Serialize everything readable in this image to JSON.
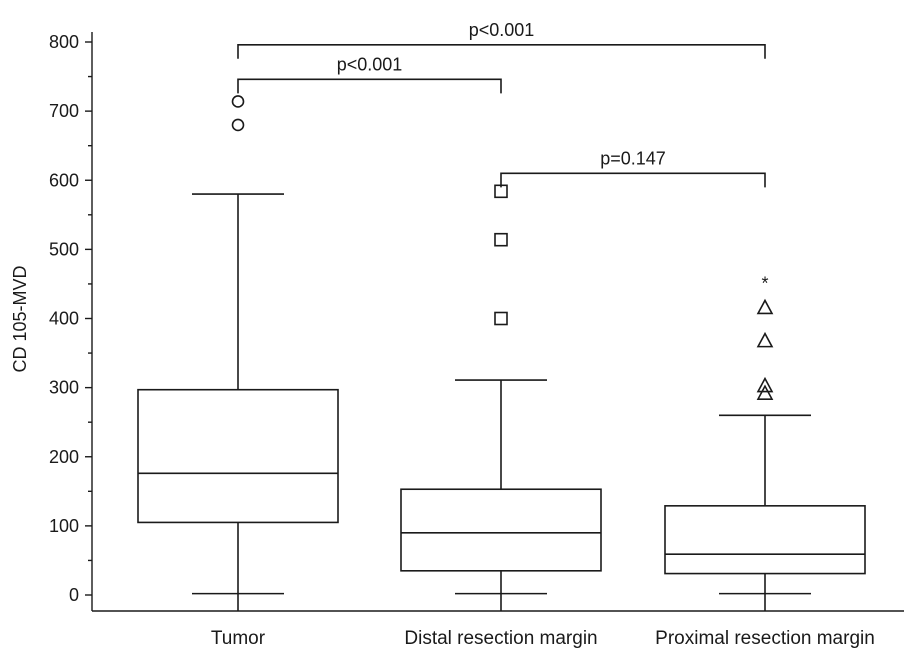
{
  "chart_data": {
    "type": "box",
    "title": "",
    "xlabel": "",
    "ylabel": "CD 105-MVD",
    "ylim": [
      0,
      800
    ],
    "y_ticks": [
      0,
      100,
      200,
      300,
      400,
      500,
      600,
      700,
      800
    ],
    "grid": false,
    "categories": [
      "Tumor",
      "Distal resection margin",
      "Proximal resection margin"
    ],
    "boxes": [
      {
        "category": "Tumor",
        "whisker_low": 2,
        "q1": 105,
        "median": 176,
        "q3": 297,
        "whisker_high": 580,
        "outliers": [
          {
            "value": 680,
            "marker": "circle"
          },
          {
            "value": 714,
            "marker": "circle"
          }
        ]
      },
      {
        "category": "Distal resection margin",
        "whisker_low": 2,
        "q1": 35,
        "median": 90,
        "q3": 153,
        "whisker_high": 311,
        "outliers": [
          {
            "value": 400,
            "marker": "square"
          },
          {
            "value": 514,
            "marker": "square"
          },
          {
            "value": 584,
            "marker": "square"
          }
        ]
      },
      {
        "category": "Proximal resection margin",
        "whisker_low": 2,
        "q1": 31,
        "median": 59,
        "q3": 129,
        "whisker_high": 260,
        "outliers": [
          {
            "value": 292,
            "marker": "triangle"
          },
          {
            "value": 303,
            "marker": "triangle"
          },
          {
            "value": 368,
            "marker": "triangle"
          },
          {
            "value": 416,
            "marker": "triangle"
          },
          {
            "value": 455,
            "marker": "star",
            "label": "*"
          }
        ]
      }
    ],
    "comparisons": [
      {
        "from": "Tumor",
        "to": "Proximal resection margin",
        "label": "p<0.001",
        "level": 796
      },
      {
        "from": "Tumor",
        "to": "Distal resection margin",
        "label": "p<0.001",
        "level": 746
      },
      {
        "from": "Distal resection margin",
        "to": "Proximal resection margin",
        "label": "p=0.147",
        "level": 610
      }
    ]
  }
}
